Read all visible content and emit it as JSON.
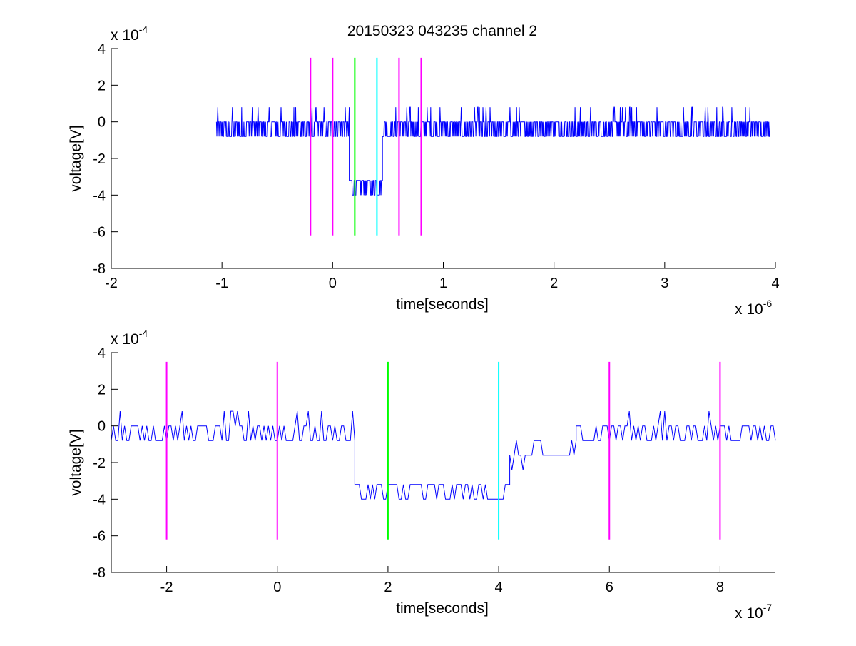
{
  "chart_data": [
    {
      "type": "line",
      "title": "20150323 043235 channel 2",
      "xlabel": "time[seconds]",
      "ylabel": "voltage[V]",
      "x_multiplier": {
        "base": "x 10",
        "exponent": "-6"
      },
      "y_multiplier": {
        "base": "x 10",
        "exponent": "-4"
      },
      "xlim": [
        -2e-06,
        4e-06
      ],
      "ylim": [
        -0.0008,
        0.0004
      ],
      "x_ticks": [
        -2e-06,
        -1e-06,
        0,
        1e-06,
        2e-06,
        3e-06,
        4e-06
      ],
      "x_tick_labels": [
        "-2",
        "-1",
        "0",
        "1",
        "2",
        "3",
        "4"
      ],
      "y_ticks": [
        -0.0008,
        -0.0006,
        -0.0004,
        -0.0002,
        0,
        0.0002,
        0.0004
      ],
      "y_tick_labels": [
        "-8",
        "-6",
        "-4",
        "-2",
        "0",
        "2",
        "4"
      ],
      "grid": false,
      "series": [
        {
          "color": "#0000ff",
          "kind": "noisy-trace",
          "segments": [
            {
              "x": [
                -1.05e-06,
                1.5e-07
              ],
              "level": -3e-05,
              "noise": 8e-05,
              "min": -0.00024,
              "max": 0.00024
            },
            {
              "x": [
                1.5e-07,
                4.5e-07
              ],
              "level": -0.00035,
              "noise": 6e-05,
              "min": -0.00056,
              "max": -0.00016
            },
            {
              "x": [
                4.5e-07,
                3.95e-06
              ],
              "level": -3e-05,
              "noise": 8e-05,
              "min": -0.00032,
              "max": 0.00032
            }
          ],
          "sample_step": 4e-09
        }
      ],
      "markers": [
        {
          "x": -2e-07,
          "color": "#ff00ff",
          "y": [
            -0.00062,
            0.00035
          ]
        },
        {
          "x": 0,
          "color": "#ff00ff",
          "y": [
            -0.00062,
            0.00035
          ]
        },
        {
          "x": 2e-07,
          "color": "#00ff00",
          "y": [
            -0.00062,
            0.00035
          ]
        },
        {
          "x": 4e-07,
          "color": "#00ffff",
          "y": [
            -0.00062,
            0.00035
          ]
        },
        {
          "x": 6e-07,
          "color": "#ff00ff",
          "y": [
            -0.00062,
            0.00035
          ]
        },
        {
          "x": 8e-07,
          "color": "#ff00ff",
          "y": [
            -0.00062,
            0.00035
          ]
        }
      ]
    },
    {
      "type": "line",
      "title": "",
      "xlabel": "time[seconds]",
      "ylabel": "voltage[V]",
      "x_multiplier": {
        "base": "x 10",
        "exponent": "-7"
      },
      "y_multiplier": {
        "base": "x 10",
        "exponent": "-4"
      },
      "xlim": [
        -3e-07,
        9e-07
      ],
      "ylim": [
        -0.0008,
        0.0004
      ],
      "x_ticks": [
        -2e-07,
        0,
        2e-07,
        4e-07,
        6e-07,
        8e-07
      ],
      "x_tick_labels": [
        "-2",
        "0",
        "2",
        "4",
        "6",
        "8"
      ],
      "y_ticks": [
        -0.0008,
        -0.0006,
        -0.0004,
        -0.0002,
        0,
        0.0002,
        0.0004
      ],
      "y_tick_labels": [
        "-8",
        "-6",
        "-4",
        "-2",
        "0",
        "2",
        "4"
      ],
      "grid": false,
      "series": [
        {
          "color": "#0000ff",
          "kind": "noisy-trace",
          "segments": [
            {
              "x": [
                -3e-07,
                1.4e-07
              ],
              "level": -3e-05,
              "noise": 8e-05,
              "min": -0.00032,
              "max": 0.00024
            },
            {
              "x": [
                1.4e-07,
                4.2e-07
              ],
              "level": -0.00036,
              "noise": 6e-05,
              "min": -0.00056,
              "max": -0.00016
            },
            {
              "x": [
                4.2e-07,
                5.4e-07
              ],
              "level": -0.00016,
              "noise": 7e-05,
              "min": -0.00032,
              "max": 8e-05
            },
            {
              "x": [
                5.4e-07,
                9e-07
              ],
              "level": -2e-05,
              "noise": 7e-05,
              "min": -0.00032,
              "max": 0.00016
            }
          ],
          "sample_step": 4e-09
        }
      ],
      "markers": [
        {
          "x": -2e-07,
          "color": "#ff00ff",
          "y": [
            -0.00062,
            0.00035
          ]
        },
        {
          "x": 0,
          "color": "#ff00ff",
          "y": [
            -0.00062,
            0.00035
          ]
        },
        {
          "x": 2e-07,
          "color": "#00ff00",
          "y": [
            -0.00062,
            0.00035
          ]
        },
        {
          "x": 4e-07,
          "color": "#00ffff",
          "y": [
            -0.00062,
            0.00035
          ]
        },
        {
          "x": 6e-07,
          "color": "#ff00ff",
          "y": [
            -0.00062,
            0.00035
          ]
        },
        {
          "x": 8e-07,
          "color": "#ff00ff",
          "y": [
            -0.00062,
            0.00035
          ]
        }
      ]
    }
  ]
}
